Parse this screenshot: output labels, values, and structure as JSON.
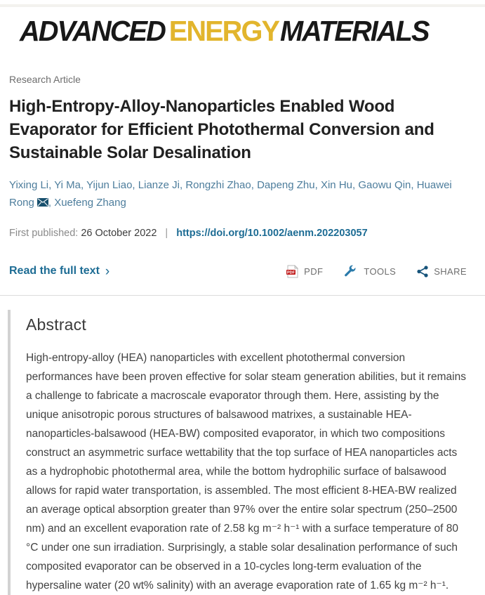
{
  "journal": {
    "brand": {
      "word1": "ADVANCED",
      "word2": "ENERGY",
      "word3": "MATERIALS"
    },
    "colors": {
      "brand-black": "#181818",
      "brand-gold": "#e2b52d",
      "link-blue": "#4d7d9c",
      "action-blue": "#1d6c94",
      "pdf-red": "#c11e1e",
      "tool-icon-blue": "#2b7bab",
      "share-icon-blue": "#16537a"
    }
  },
  "article": {
    "type_label": "Research Article",
    "title": "High-Entropy-Alloy-Nanoparticles Enabled Wood Evaporator for Efficient Photothermal Conversion and Sustainable Solar Desalination",
    "authors": [
      {
        "name": "Yixing Li"
      },
      {
        "name": "Yi Ma"
      },
      {
        "name": "Yijun Liao"
      },
      {
        "name": "Lianze Ji"
      },
      {
        "name": "Rongzhi Zhao"
      },
      {
        "name": "Dapeng Zhu"
      },
      {
        "name": "Xin Hu"
      },
      {
        "name": "Gaowu Qin"
      },
      {
        "name": "Huawei Rong",
        "corresponding": true
      },
      {
        "name": "Xuefeng Zhang"
      }
    ],
    "first_published_label": "First published:",
    "first_published_date": "26 October 2022",
    "separator": "|",
    "doi_url": "https://doi.org/10.1002/aenm.202203057"
  },
  "actions": {
    "read_full_text": "Read the full text",
    "chevron": "›",
    "pdf_label": "PDF",
    "tools_label": "TOOLS",
    "share_label": "SHARE"
  },
  "abstract": {
    "heading": "Abstract",
    "text": "High-entropy-alloy (HEA) nanoparticles with excellent photothermal conversion performances have been proven effective for solar steam generation abilities, but it remains a challenge to fabricate a macroscale evaporator through them. Here, assisting by the unique anisotropic porous structures of balsawood matrixes, a sustainable HEA-nanoparticles-balsawood (HEA-BW) composited evaporator, in which two compositions construct an asymmetric surface wettability that the top surface of HEA nanoparticles acts as a hydrophobic photothermal area, while the bottom hydrophilic surface of balsawood allows for rapid water transportation, is assembled. The most efficient 8-HEA-BW realized an average optical absorption greater than 97% over the entire solar spectrum (250–2500 nm) and an excellent evaporation rate of 2.58 kg m⁻² h⁻¹ with a surface temperature of 80 °C under one sun irradiation. Surprisingly, a stable solar desalination performance of such composited evaporator can be observed in a 10-cycles long-term evaluation of the hypersaline water (20 wt% salinity) with an average evaporation rate of 1.65 kg m⁻² h⁻¹."
  }
}
